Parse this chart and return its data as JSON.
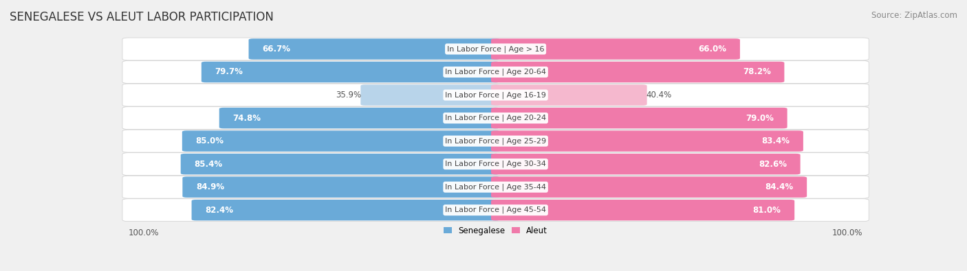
{
  "title": "SENEGALESE VS ALEUT LABOR PARTICIPATION",
  "source": "Source: ZipAtlas.com",
  "categories": [
    "In Labor Force | Age > 16",
    "In Labor Force | Age 20-64",
    "In Labor Force | Age 16-19",
    "In Labor Force | Age 20-24",
    "In Labor Force | Age 25-29",
    "In Labor Force | Age 30-34",
    "In Labor Force | Age 35-44",
    "In Labor Force | Age 45-54"
  ],
  "senegalese_values": [
    66.7,
    79.7,
    35.9,
    74.8,
    85.0,
    85.4,
    84.9,
    82.4
  ],
  "aleut_values": [
    66.0,
    78.2,
    40.4,
    79.0,
    83.4,
    82.6,
    84.4,
    81.0
  ],
  "senegalese_color": "#6aaad8",
  "senegalese_color_light": "#b8d4ea",
  "aleut_color": "#f07aaa",
  "aleut_color_light": "#f5b8ce",
  "row_bg_color": "#ffffff",
  "row_border_color": "#dddddd",
  "background_color": "#f0f0f0",
  "center_label_color": "#444444",
  "value_label_color_white": "#ffffff",
  "value_label_color_dark": "#555555",
  "legend_senegalese": "Senegalese",
  "legend_aleut": "Aleut",
  "title_fontsize": 12,
  "source_fontsize": 8.5,
  "value_fontsize": 8.5,
  "category_fontsize": 8.0,
  "footer_fontsize": 8.5,
  "footer_label": "100.0%",
  "max_val": 100.0
}
